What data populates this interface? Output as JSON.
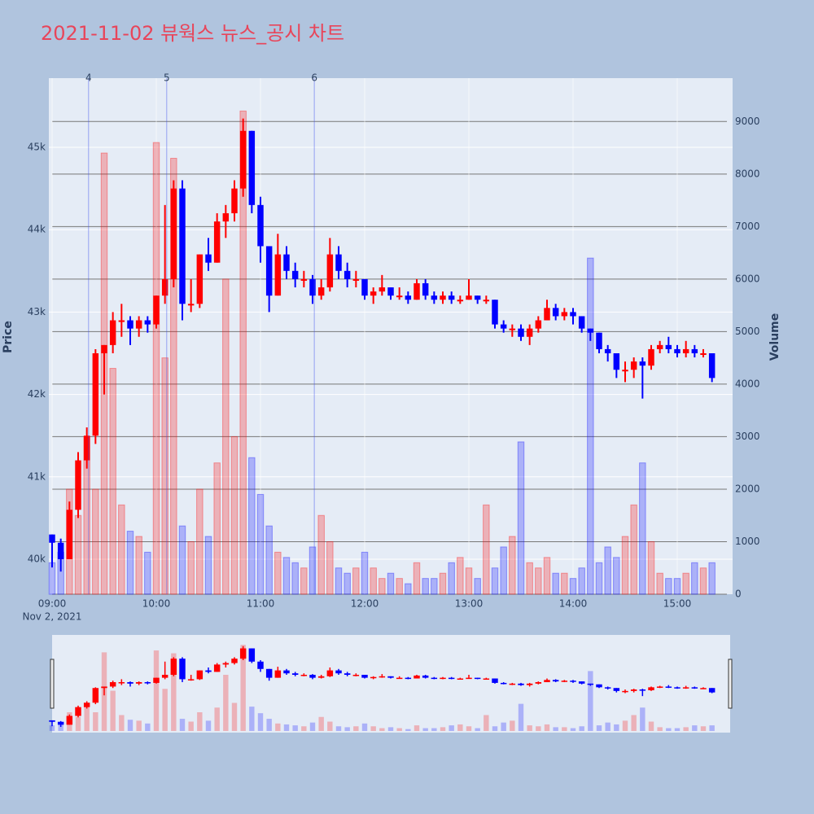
{
  "chart_data": {
    "type": "candlestick",
    "title": "2021-11-02 뷰웍스 뉴스_공시 차트",
    "x": [
      "09:00",
      "09:05",
      "09:10",
      "09:15",
      "09:20",
      "09:25",
      "09:30",
      "09:35",
      "09:40",
      "09:45",
      "09:50",
      "09:55",
      "10:00",
      "10:05",
      "10:10",
      "10:15",
      "10:20",
      "10:25",
      "10:30",
      "10:35",
      "10:40",
      "10:45",
      "10:50",
      "10:55",
      "11:00",
      "11:05",
      "11:10",
      "11:15",
      "11:20",
      "11:25",
      "11:30",
      "11:35",
      "11:40",
      "11:45",
      "11:50",
      "11:55",
      "12:00",
      "12:05",
      "12:10",
      "12:15",
      "12:20",
      "12:25",
      "12:30",
      "12:35",
      "12:40",
      "12:45",
      "12:50",
      "12:55",
      "13:00",
      "13:05",
      "13:10",
      "13:15",
      "13:20",
      "13:25",
      "13:30",
      "13:35",
      "13:40",
      "13:45",
      "13:50",
      "13:55",
      "14:00",
      "14:05",
      "14:10",
      "14:15",
      "14:20",
      "14:25",
      "14:30",
      "14:35",
      "14:40",
      "14:45",
      "14:50",
      "14:55",
      "15:00",
      "15:05",
      "15:10",
      "15:15",
      "15:20"
    ],
    "open": [
      40300,
      40200,
      40000,
      40600,
      41200,
      41500,
      42500,
      42600,
      42900,
      42900,
      42800,
      42900,
      42850,
      43200,
      43400,
      44500,
      43100,
      43100,
      43700,
      43600,
      44100,
      44200,
      44500,
      45200,
      44300,
      43800,
      43200,
      43700,
      43500,
      43400,
      43400,
      43200,
      43300,
      43700,
      43500,
      43400,
      43400,
      43200,
      43250,
      43300,
      43200,
      43200,
      43150,
      43350,
      43200,
      43150,
      43200,
      43150,
      43150,
      43200,
      43150,
      43150,
      42850,
      42800,
      42800,
      42700,
      42800,
      42900,
      43050,
      42950,
      43000,
      42950,
      42800,
      42750,
      42550,
      42500,
      42300,
      42300,
      42400,
      42350,
      42550,
      42600,
      42550,
      42500,
      42550,
      42500,
      42500
    ],
    "high": [
      40300,
      40250,
      40700,
      41300,
      41600,
      42550,
      42600,
      43000,
      43100,
      42950,
      42950,
      42950,
      43200,
      44300,
      44600,
      44600,
      43400,
      43700,
      43900,
      44200,
      44300,
      44600,
      45350,
      45200,
      44400,
      43800,
      43950,
      43800,
      43600,
      43500,
      43450,
      43400,
      43900,
      43800,
      43600,
      43500,
      43400,
      43300,
      43450,
      43300,
      43300,
      43250,
      43400,
      43400,
      43250,
      43250,
      43250,
      43200,
      43400,
      43200,
      43200,
      43150,
      42900,
      42850,
      42850,
      42850,
      42950,
      43150,
      43100,
      43050,
      43050,
      42950,
      42800,
      42750,
      42600,
      42500,
      42400,
      42450,
      42450,
      42600,
      42650,
      42700,
      42600,
      42650,
      42600,
      42550,
      42500
    ],
    "low": [
      39900,
      39850,
      40000,
      40500,
      41100,
      41400,
      42000,
      42500,
      42700,
      42600,
      42700,
      42750,
      42800,
      43100,
      43300,
      42900,
      43000,
      43050,
      43500,
      43600,
      43900,
      44100,
      44400,
      44200,
      43600,
      43000,
      43200,
      43400,
      43300,
      43300,
      43100,
      43150,
      43250,
      43400,
      43300,
      43300,
      43150,
      43100,
      43200,
      43150,
      43150,
      43100,
      43150,
      43150,
      43100,
      43100,
      43100,
      43100,
      43150,
      43100,
      43100,
      42800,
      42750,
      42700,
      42650,
      42600,
      42750,
      42900,
      42900,
      42900,
      42850,
      42750,
      42650,
      42500,
      42400,
      42200,
      42150,
      42200,
      41950,
      42300,
      42500,
      42500,
      42450,
      42450,
      42450,
      42450,
      42150
    ],
    "close": [
      40200,
      40000,
      40600,
      41200,
      41500,
      42500,
      42600,
      42900,
      42900,
      42800,
      42900,
      42850,
      43200,
      43400,
      44500,
      43100,
      43100,
      43700,
      43600,
      44100,
      44200,
      44500,
      45200,
      44300,
      43800,
      43200,
      43700,
      43500,
      43400,
      43400,
      43200,
      43300,
      43700,
      43500,
      43400,
      43400,
      43200,
      43250,
      43300,
      43200,
      43200,
      43150,
      43350,
      43200,
      43150,
      43200,
      43150,
      43150,
      43200,
      43150,
      43150,
      42850,
      42800,
      42800,
      42700,
      42800,
      42900,
      43050,
      42950,
      43000,
      42950,
      42800,
      42750,
      42550,
      42500,
      42300,
      42300,
      42400,
      42350,
      42550,
      42600,
      42550,
      42500,
      42550,
      42500,
      42500,
      42200
    ],
    "volume": [
      600,
      800,
      2000,
      1500,
      3000,
      2000,
      8400,
      4300,
      1700,
      1200,
      1100,
      800,
      8600,
      4500,
      8300,
      1300,
      1000,
      2000,
      1100,
      2500,
      6000,
      3000,
      9200,
      2600,
      1900,
      1300,
      800,
      700,
      600,
      500,
      900,
      1500,
      1000,
      500,
      400,
      500,
      800,
      500,
      300,
      400,
      300,
      200,
      600,
      300,
      300,
      400,
      600,
      700,
      500,
      300,
      1700,
      500,
      900,
      1100,
      2900,
      600,
      500,
      700,
      400,
      400,
      300,
      500,
      6400,
      600,
      900,
      700,
      1100,
      1700,
      2500,
      1000,
      400,
      300,
      300,
      400,
      600,
      500,
      600
    ],
    "increasing_color": "#ff0000",
    "decreasing_color": "#0000ff",
    "ylim": [
      39575,
      45840
    ],
    "yticks": [
      {
        "value": 40000,
        "label": "40k"
      },
      {
        "value": 41000,
        "label": "41k"
      },
      {
        "value": 42000,
        "label": "42k"
      },
      {
        "value": 43000,
        "label": "43k"
      },
      {
        "value": 44000,
        "label": "44k"
      },
      {
        "value": 45000,
        "label": "45k"
      }
    ],
    "y2lim": [
      0,
      9826
    ],
    "y2ticks": [
      0,
      1000,
      2000,
      3000,
      4000,
      5000,
      6000,
      7000,
      8000,
      9000
    ],
    "y_label": "Price",
    "y2_label": "Volume",
    "xticks": [
      "09:00",
      "10:00",
      "11:00",
      "12:00",
      "13:00",
      "14:00",
      "15:00"
    ],
    "x_sublabel": "Nov 2, 2021",
    "news_markers": [
      {
        "time": "09:21",
        "label": "4"
      },
      {
        "time": "10:06",
        "label": "5"
      },
      {
        "time": "11:31",
        "label": "6"
      }
    ],
    "rangeslider": true
  }
}
